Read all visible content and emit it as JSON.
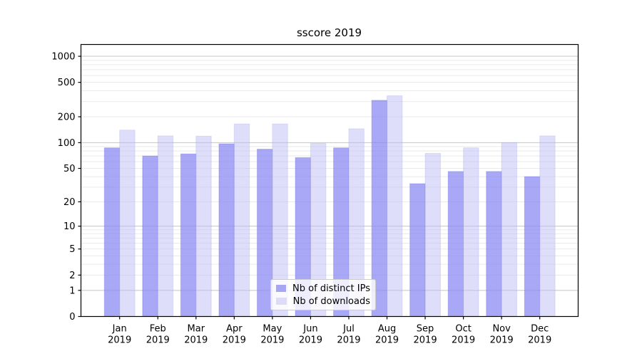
{
  "chart_data": {
    "type": "bar",
    "title": "sscore 2019",
    "categories": [
      "Jan",
      "Feb",
      "Mar",
      "Apr",
      "May",
      "Jun",
      "Jul",
      "Aug",
      "Sep",
      "Oct",
      "Nov",
      "Dec"
    ],
    "x_tick_second_line": "2019",
    "series": [
      {
        "name": "Nb of distinct IPs",
        "color": "rgba(135,135,242,0.72)",
        "edge_color": "rgba(100,100,215,0.30)",
        "legend_color": "#a6a6f4",
        "values": [
          87,
          70,
          74,
          97,
          84,
          67,
          87,
          310,
          33,
          46,
          46,
          40
        ]
      },
      {
        "name": "Nb of downloads",
        "color": "rgba(190,190,247,0.50)",
        "edge_color": "rgba(150,150,230,0.25)",
        "legend_color": "#dcdcf9",
        "values": [
          140,
          120,
          119,
          165,
          165,
          98,
          145,
          350,
          75,
          87,
          100,
          120
        ]
      }
    ],
    "yscale": "log1p",
    "ylim": [
      0,
      1450
    ],
    "y_ticks": [
      0,
      1,
      2,
      5,
      10,
      20,
      50,
      100,
      200,
      500,
      1000
    ],
    "y_major_gridlines": [
      1,
      10,
      100,
      1000
    ],
    "y_minor_gridlines": [
      2,
      3,
      4,
      5,
      6,
      7,
      8,
      9,
      20,
      30,
      40,
      50,
      60,
      70,
      80,
      90,
      200,
      300,
      400,
      500,
      600,
      700,
      800,
      900
    ],
    "grid": true,
    "legend_position": "lower center inside",
    "colors": {
      "major_grid": "#c4c4c4",
      "minor_grid": "#eaeaea",
      "spine": "#000000",
      "text": "#000000"
    }
  }
}
